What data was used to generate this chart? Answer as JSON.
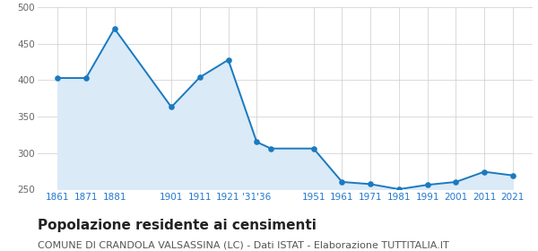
{
  "years": [
    1861,
    1871,
    1881,
    1901,
    1911,
    1921,
    1931,
    1936,
    1951,
    1961,
    1971,
    1981,
    1991,
    2001,
    2011,
    2021
  ],
  "population": [
    403,
    403,
    471,
    363,
    404,
    428,
    315,
    306,
    306,
    260,
    257,
    250,
    256,
    260,
    274,
    269
  ],
  "line_color": "#1a7abf",
  "fill_color": "#daeaf7",
  "marker_color": "#1a7abf",
  "background_color": "#ffffff",
  "grid_color": "#cccccc",
  "ylim_min": 250,
  "ylim_max": 500,
  "yticks": [
    250,
    300,
    350,
    400,
    450,
    500
  ],
  "xlim_min": 1854,
  "xlim_max": 2028,
  "title": "Popolazione residente ai censimenti",
  "subtitle": "COMUNE DI CRANDOLA VALSASSINA (LC) - Dati ISTAT - Elaborazione TUTTITALIA.IT",
  "title_fontsize": 11,
  "subtitle_fontsize": 8,
  "tick_label_color": "#2277cc",
  "ytick_label_color": "#666666",
  "tick_fontsize": 7.5,
  "xtick_positions": [
    1861,
    1871,
    1881,
    1901,
    1911,
    1921,
    1931,
    1951,
    1961,
    1971,
    1981,
    1991,
    2001,
    2011,
    2021
  ],
  "xtick_labels": [
    "1861",
    "1871",
    "1881",
    "1901",
    "1911",
    "1921",
    "'31'36",
    "1951",
    "1961",
    "1971",
    "1981",
    "1991",
    "2001",
    "2011",
    "2021"
  ]
}
